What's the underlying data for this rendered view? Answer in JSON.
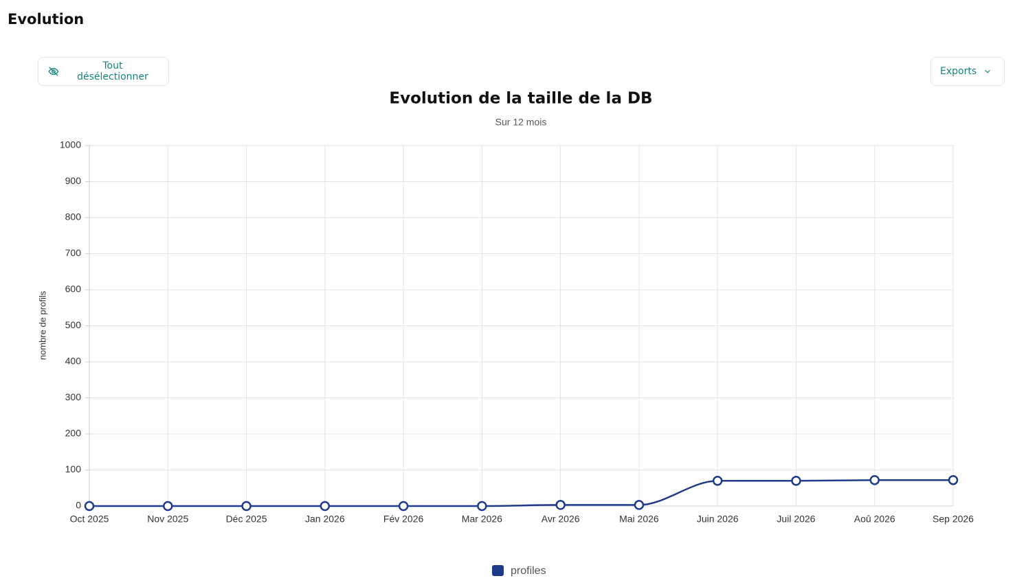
{
  "header": {
    "title": "Evolution"
  },
  "toolbar": {
    "deselect_button": "Tout désélectionner",
    "exports_button": "Exports"
  },
  "chart_data": {
    "type": "line",
    "title": "Evolution de la taille de la DB",
    "subtitle": "Sur 12 mois",
    "y_label": "nombre de profils",
    "categories": [
      "Oct 2025",
      "Nov 2025",
      "Déc 2025",
      "Jan 2026",
      "Fév 2026",
      "Mar 2026",
      "Avr 2026",
      "Mai 2026",
      "Juin 2026",
      "Juil 2026",
      "Aoû 2026",
      "Sep 2026"
    ],
    "series": [
      {
        "name": "profiles",
        "color": "#1e3a8a",
        "values": [
          0,
          0,
          0,
          0,
          0,
          0,
          3,
          3,
          70,
          70,
          72,
          72
        ]
      }
    ],
    "ylim": [
      0,
      1000
    ],
    "yticks": [
      0,
      100,
      200,
      300,
      400,
      500,
      600,
      700,
      800,
      900,
      1000
    ],
    "grid": true,
    "smooth": true,
    "legend": "bottom"
  }
}
